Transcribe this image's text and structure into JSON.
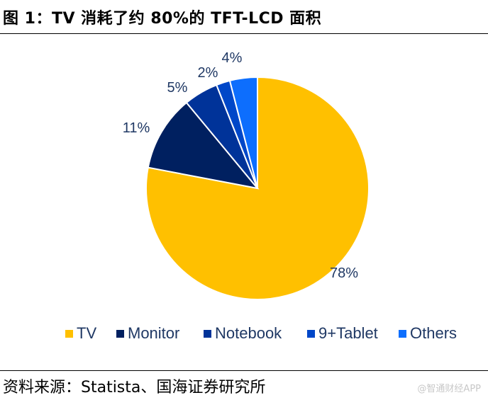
{
  "figure": {
    "title": "图 1：TV 消耗了约 80%的 TFT-LCD 面积",
    "source": "资料来源：Statista、国海证券研究所",
    "watermark": "@智通财经APP"
  },
  "chart_data": {
    "type": "pie",
    "start_angle_deg": 0,
    "direction": "clockwise",
    "legend_position": "bottom",
    "slices": [
      {
        "name": "TV",
        "value": 78,
        "label": "78%",
        "color": "#FFC000"
      },
      {
        "name": "Monitor",
        "value": 11,
        "label": "11%",
        "color": "#002060"
      },
      {
        "name": "Notebook",
        "value": 5,
        "label": "5%",
        "color": "#003399"
      },
      {
        "name": "9+Tablet",
        "value": 2,
        "label": "2%",
        "color": "#0047C8"
      },
      {
        "name": "Others",
        "value": 4,
        "label": "4%",
        "color": "#0D6EFD"
      }
    ]
  }
}
